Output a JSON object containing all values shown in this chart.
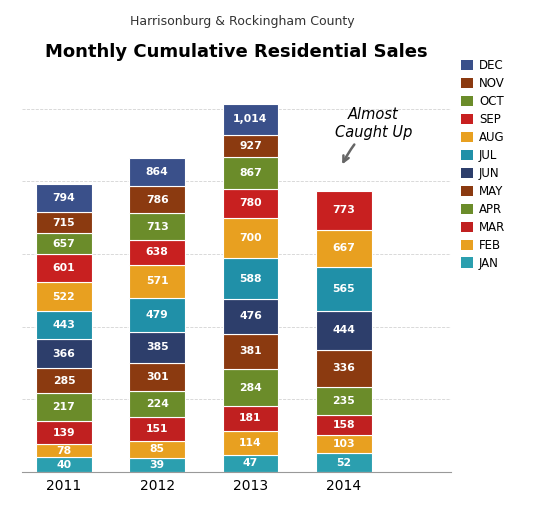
{
  "title": "Monthly Cumulative Residential Sales",
  "subtitle": "Harrisonburg & Rockingham County",
  "years": [
    "2011",
    "2012",
    "2013",
    "2014"
  ],
  "months": [
    "JAN",
    "FEB",
    "MAR",
    "APR",
    "MAY",
    "JUN",
    "JUL",
    "AUG",
    "SEP",
    "OCT",
    "NOV",
    "DEC"
  ],
  "month_colors": [
    "#2B9FAF",
    "#E8A020",
    "#C02020",
    "#6B8C2A",
    "#8B3A10",
    "#2D3E6B",
    "#2090A8",
    "#E8A020",
    "#C82020",
    "#6B8C2A",
    "#8B3A10",
    "#3A508A"
  ],
  "cumulative_values": {
    "2011": [
      40,
      78,
      139,
      217,
      285,
      366,
      443,
      522,
      601,
      657,
      715,
      794
    ],
    "2012": [
      39,
      85,
      151,
      224,
      301,
      385,
      479,
      571,
      638,
      713,
      786,
      864
    ],
    "2013": [
      47,
      114,
      181,
      284,
      381,
      476,
      588,
      700,
      780,
      867,
      927,
      1014
    ],
    "2014": [
      52,
      103,
      158,
      235,
      336,
      444,
      565,
      667,
      773,
      null,
      null,
      null
    ]
  },
  "ylim": [
    0,
    1130
  ],
  "bar_width": 0.6,
  "annotation_text": "Almost\nCaught Up",
  "label_fontsize": 7.8,
  "title_fontsize": 13,
  "subtitle_fontsize": 9,
  "year_fontsize": 10,
  "legend_fontsize": 8.5
}
